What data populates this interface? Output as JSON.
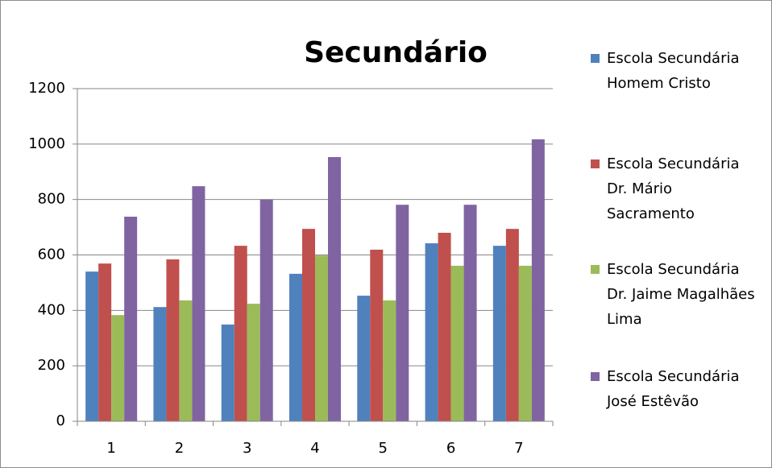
{
  "chart_data": {
    "type": "bar",
    "title": "Secundário",
    "categories": [
      "1",
      "2",
      "3",
      "4",
      "5",
      "6",
      "7"
    ],
    "series": [
      {
        "name": "Escola Secundária Homem Cristo",
        "color": "#4f81bd",
        "values": [
          540,
          412,
          349,
          532,
          453,
          642,
          633
        ]
      },
      {
        "name": "Escola Secundária Dr. Mário Sacramento",
        "color": "#c0504d",
        "values": [
          569,
          584,
          633,
          694,
          619,
          680,
          694
        ]
      },
      {
        "name": "Escola Secundária Dr. Jaime Magalhães Lima",
        "color": "#9bbb59",
        "values": [
          383,
          436,
          424,
          598,
          436,
          561,
          561
        ]
      },
      {
        "name": "Escola Secundária José Estêvão",
        "color": "#8064a2",
        "values": [
          738,
          848,
          799,
          953,
          781,
          781,
          1017
        ]
      }
    ],
    "ylim": [
      0,
      1200
    ],
    "yticks": [
      0,
      200,
      400,
      600,
      800,
      1000,
      1200
    ],
    "grid": true,
    "legend": "right"
  }
}
